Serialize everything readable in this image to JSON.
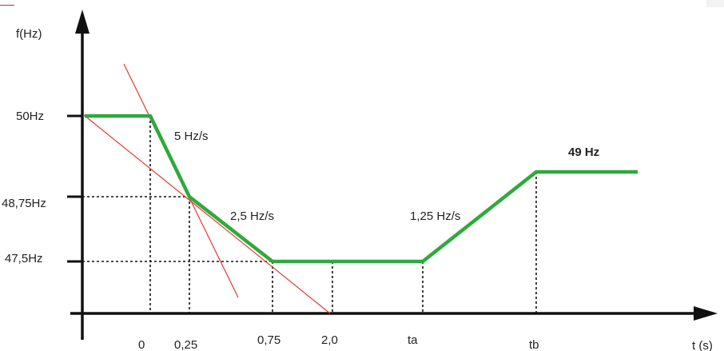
{
  "chart_data": {
    "type": "line",
    "xlabel": "t (s)",
    "ylabel": "f(Hz)",
    "x_tick_labels": [
      "0",
      "0,25",
      "0,75",
      "2,0",
      "ta",
      "tb"
    ],
    "y_tick_labels": [
      "50Hz",
      "48,75Hz",
      "47,5Hz"
    ],
    "y_ticks": [
      50,
      48.75,
      47.5
    ],
    "grid": false,
    "series": [
      {
        "color": "#2eaa3c",
        "points": [
          {
            "x": "<0",
            "y": 50
          },
          {
            "x": "0",
            "y": 50
          },
          {
            "x": "0,25",
            "y": 48.75
          },
          {
            "x": "0,75",
            "y": 47.5
          },
          {
            "x": "ta",
            "y": 47.5
          },
          {
            "x": "tb",
            "y": 49
          },
          {
            "x": ">tb",
            "y": 49
          }
        ]
      }
    ],
    "reference_lines": [
      {
        "color": "#e0392b",
        "slope_label": "5 Hz/s"
      },
      {
        "color": "#e0392b",
        "slope_label": "2,5 Hz/s"
      }
    ],
    "annotations": {
      "slope_1": "5 Hz/s",
      "slope_2": "2,5 Hz/s",
      "slope_3": "1,25 Hz/s",
      "final": "49 Hz"
    },
    "colors": {
      "curve": "#2eaa3c",
      "tangent": "#e0392b",
      "axis": "#111111",
      "guide": "#111111"
    }
  }
}
